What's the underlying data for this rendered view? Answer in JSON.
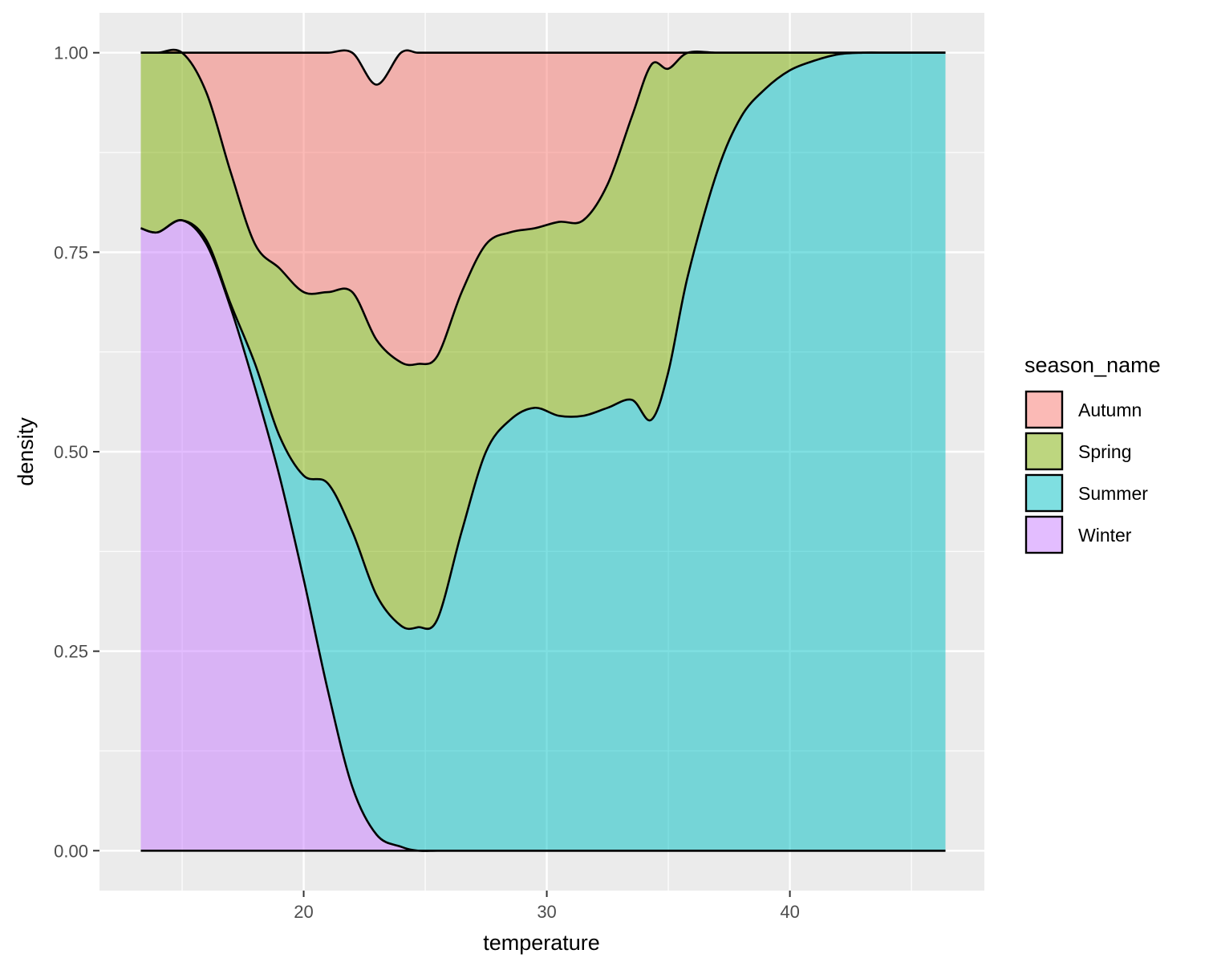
{
  "chart_data": {
    "type": "area",
    "subtype": "conditional-density (position = fill)",
    "xlabel": "temperature",
    "ylabel": "density",
    "xlim": [
      11.6,
      48.0
    ],
    "ylim": [
      -0.05,
      1.05
    ],
    "x_ticks": [
      20,
      30,
      40
    ],
    "x_tick_labels": [
      "20",
      "30",
      "40"
    ],
    "y_ticks": [
      0,
      0.25,
      0.5,
      0.75,
      1.0
    ],
    "y_tick_labels": [
      "0.00",
      "0.25",
      "0.50",
      "0.75",
      "1.00"
    ],
    "grid": true,
    "legend": {
      "title": "season_name",
      "position": "right"
    },
    "x": [
      13.3,
      14.0,
      15.0,
      16.0,
      17.0,
      18.0,
      19.0,
      20.0,
      21.0,
      22.0,
      23.0,
      24.0,
      24.7,
      25.5,
      26.5,
      27.5,
      28.5,
      29.5,
      30.5,
      31.5,
      32.5,
      33.5,
      34.3,
      35.0,
      35.8,
      37.0,
      38.0,
      39.0,
      40.0,
      41.0,
      42.0,
      43.0,
      44.0,
      45.0,
      46.4
    ],
    "series": [
      {
        "name": "Winter",
        "color": "#C77CFF",
        "values": [
          0.78,
          0.775,
          0.79,
          0.76,
          0.68,
          0.58,
          0.47,
          0.34,
          0.2,
          0.08,
          0.02,
          0.005,
          0.0,
          0,
          0,
          0,
          0,
          0,
          0,
          0,
          0,
          0,
          0,
          0,
          0,
          0,
          0,
          0,
          0,
          0,
          0,
          0,
          0,
          0,
          0
        ]
      },
      {
        "name": "Summer",
        "color": "#00BFC4",
        "values": [
          0.0,
          0.0,
          0.0,
          0.005,
          0.005,
          0.03,
          0.05,
          0.13,
          0.26,
          0.32,
          0.3,
          0.277,
          0.28,
          0.29,
          0.4,
          0.5,
          0.54,
          0.555,
          0.545,
          0.545,
          0.555,
          0.565,
          0.54,
          0.6,
          0.72,
          0.85,
          0.92,
          0.955,
          0.978,
          0.99,
          0.998,
          1.0,
          1.0,
          1.0,
          1.0
        ]
      },
      {
        "name": "Spring",
        "color": "#7CAE00",
        "values": [
          0.22,
          0.225,
          0.21,
          0.185,
          0.165,
          0.15,
          0.21,
          0.23,
          0.24,
          0.3,
          0.32,
          0.33,
          0.33,
          0.33,
          0.3,
          0.26,
          0.235,
          0.225,
          0.243,
          0.245,
          0.28,
          0.355,
          0.445,
          0.38,
          0.28,
          0.15,
          0.08,
          0.045,
          0.022,
          0.01,
          0.002,
          0.0,
          0.0,
          0.0,
          0.0
        ]
      },
      {
        "name": "Autumn",
        "color": "#F8766D",
        "values": [
          0.0,
          0.0,
          0.0,
          0.05,
          0.15,
          0.24,
          0.27,
          0.3,
          0.3,
          0.3,
          0.32,
          0.388,
          0.39,
          0.38,
          0.3,
          0.24,
          0.225,
          0.22,
          0.212,
          0.21,
          0.165,
          0.08,
          0.015,
          0.02,
          0.0,
          0,
          0,
          0,
          0,
          0,
          0,
          0,
          0,
          0,
          0
        ]
      }
    ]
  }
}
